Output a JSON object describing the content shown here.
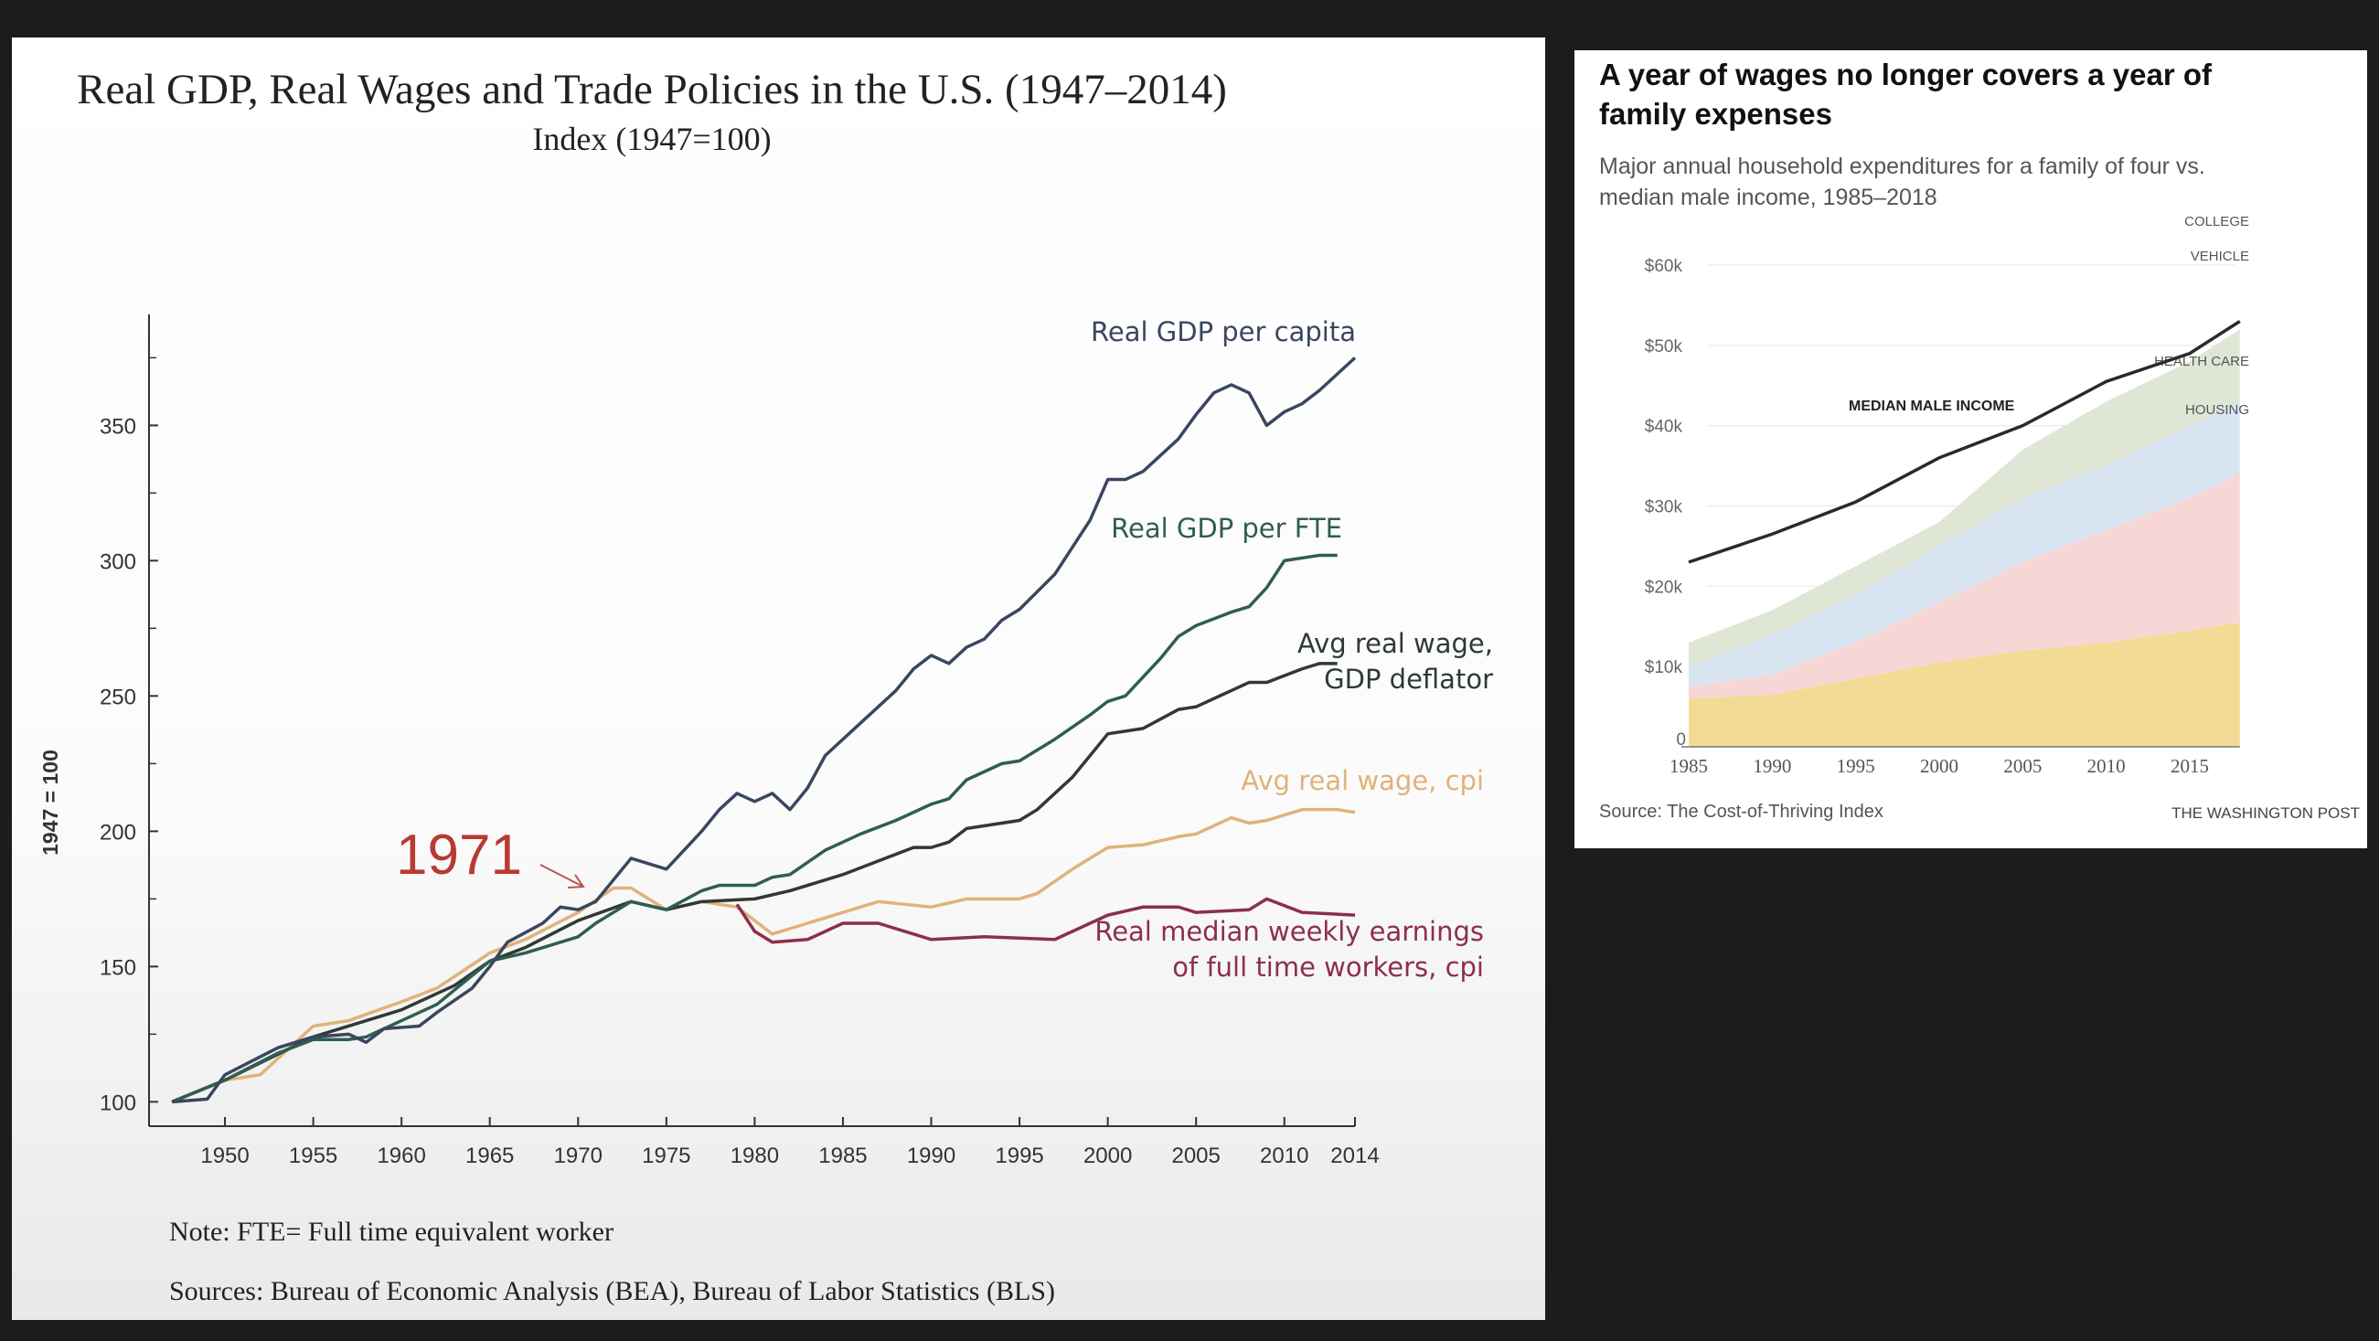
{
  "chart_data": [
    {
      "type": "line",
      "title": "Real GDP, Real Wages and Trade Policies in the U.S. (1947–2014)",
      "subtitle": "Index (1947=100)",
      "ylabel": "1947 = 100",
      "xlabel": "",
      "xlim": [
        1945.7,
        2014
      ],
      "ylim": [
        91,
        391
      ],
      "x_ticks": [
        "1950",
        "1955",
        "1960",
        "1965",
        "1970",
        "1975",
        "1980",
        "1985",
        "1990",
        "1995",
        "2000",
        "2005",
        "2010",
        "2014"
      ],
      "y_ticks": [
        "100",
        "150",
        "200",
        "250",
        "300",
        "350"
      ],
      "grid": false,
      "annotation": "1971",
      "series": [
        {
          "name": "Real GDP per capita",
          "color": "#3a4660",
          "points": [
            [
              1947,
              100
            ],
            [
              1949,
              101
            ],
            [
              1950,
              110
            ],
            [
              1953,
              120
            ],
            [
              1955,
              124
            ],
            [
              1957,
              125
            ],
            [
              1958,
              122
            ],
            [
              1959,
              127
            ],
            [
              1961,
              128
            ],
            [
              1962,
              133
            ],
            [
              1964,
              142
            ],
            [
              1965,
              150
            ],
            [
              1966,
              159
            ],
            [
              1968,
              166
            ],
            [
              1969,
              172
            ],
            [
              1970,
              171
            ],
            [
              1971,
              174
            ],
            [
              1973,
              190
            ],
            [
              1975,
              186
            ],
            [
              1977,
              200
            ],
            [
              1978,
              208
            ],
            [
              1979,
              214
            ],
            [
              1980,
              211
            ],
            [
              1981,
              214
            ],
            [
              1982,
              208
            ],
            [
              1983,
              216
            ],
            [
              1984,
              228
            ],
            [
              1986,
              240
            ],
            [
              1988,
              252
            ],
            [
              1989,
              260
            ],
            [
              1990,
              265
            ],
            [
              1991,
              262
            ],
            [
              1992,
              268
            ],
            [
              1993,
              271
            ],
            [
              1994,
              278
            ],
            [
              1995,
              282
            ],
            [
              1997,
              295
            ],
            [
              1999,
              315
            ],
            [
              2000,
              330
            ],
            [
              2001,
              330
            ],
            [
              2002,
              333
            ],
            [
              2004,
              345
            ],
            [
              2005,
              354
            ],
            [
              2006,
              362
            ],
            [
              2007,
              365
            ],
            [
              2008,
              362
            ],
            [
              2009,
              350
            ],
            [
              2010,
              355
            ],
            [
              2011,
              358
            ],
            [
              2012,
              363
            ],
            [
              2014,
              375
            ]
          ]
        },
        {
          "name": "Real GDP per FTE",
          "color": "#2f5e50",
          "points": [
            [
              1947,
              100
            ],
            [
              1950,
              108
            ],
            [
              1953,
              118
            ],
            [
              1955,
              123
            ],
            [
              1957,
              123
            ],
            [
              1958,
              124
            ],
            [
              1960,
              130
            ],
            [
              1962,
              136
            ],
            [
              1965,
              152
            ],
            [
              1967,
              155
            ],
            [
              1968,
              157
            ],
            [
              1970,
              161
            ],
            [
              1971,
              166
            ],
            [
              1973,
              174
            ],
            [
              1975,
              171
            ],
            [
              1977,
              178
            ],
            [
              1978,
              180
            ],
            [
              1980,
              180
            ],
            [
              1981,
              183
            ],
            [
              1982,
              184
            ],
            [
              1984,
              193
            ],
            [
              1986,
              199
            ],
            [
              1988,
              204
            ],
            [
              1990,
              210
            ],
            [
              1991,
              212
            ],
            [
              1992,
              219
            ],
            [
              1994,
              225
            ],
            [
              1995,
              226
            ],
            [
              1997,
              234
            ],
            [
              1999,
              243
            ],
            [
              2000,
              248
            ],
            [
              2001,
              250
            ],
            [
              2003,
              264
            ],
            [
              2004,
              272
            ],
            [
              2005,
              276
            ],
            [
              2007,
              281
            ],
            [
              2008,
              283
            ],
            [
              2009,
              290
            ],
            [
              2010,
              300
            ],
            [
              2012,
              302
            ],
            [
              2013,
              302
            ]
          ]
        },
        {
          "name": "Avg real wage, GDP deflator",
          "label_lines": [
            "Avg real wage,",
            "GDP deflator"
          ],
          "color": "#2e3a33",
          "points": [
            [
              1947,
              100
            ],
            [
              1950,
              108
            ],
            [
              1955,
              124
            ],
            [
              1958,
              130
            ],
            [
              1960,
              134
            ],
            [
              1963,
              143
            ],
            [
              1965,
              152
            ],
            [
              1967,
              157
            ],
            [
              1970,
              167
            ],
            [
              1973,
              174
            ],
            [
              1975,
              171
            ],
            [
              1977,
              174
            ],
            [
              1980,
              175
            ],
            [
              1982,
              178
            ],
            [
              1985,
              184
            ],
            [
              1987,
              189
            ],
            [
              1989,
              194
            ],
            [
              1990,
              194
            ],
            [
              1991,
              196
            ],
            [
              1992,
              201
            ],
            [
              1995,
              204
            ],
            [
              1996,
              208
            ],
            [
              1998,
              220
            ],
            [
              2000,
              236
            ],
            [
              2002,
              238
            ],
            [
              2004,
              245
            ],
            [
              2005,
              246
            ],
            [
              2007,
              252
            ],
            [
              2008,
              255
            ],
            [
              2009,
              255
            ],
            [
              2011,
              260
            ],
            [
              2012,
              262
            ],
            [
              2013,
              262
            ]
          ]
        },
        {
          "name": "Avg real wage, cpi",
          "color": "#e0b27a",
          "points": [
            [
              1947,
              100
            ],
            [
              1950,
              108
            ],
            [
              1952,
              110
            ],
            [
              1955,
              128
            ],
            [
              1957,
              130
            ],
            [
              1960,
              137
            ],
            [
              1962,
              142
            ],
            [
              1965,
              155
            ],
            [
              1967,
              160
            ],
            [
              1970,
              170
            ],
            [
              1972,
              179
            ],
            [
              1973,
              179
            ],
            [
              1975,
              171
            ],
            [
              1977,
              174
            ],
            [
              1979,
              172
            ],
            [
              1981,
              162
            ],
            [
              1983,
              166
            ],
            [
              1985,
              170
            ],
            [
              1987,
              174
            ],
            [
              1990,
              172
            ],
            [
              1992,
              175
            ],
            [
              1995,
              175
            ],
            [
              1996,
              177
            ],
            [
              1998,
              186
            ],
            [
              2000,
              194
            ],
            [
              2002,
              195
            ],
            [
              2004,
              198
            ],
            [
              2005,
              199
            ],
            [
              2007,
              205
            ],
            [
              2008,
              203
            ],
            [
              2009,
              204
            ],
            [
              2011,
              208
            ],
            [
              2013,
              208
            ],
            [
              2014,
              207
            ]
          ]
        },
        {
          "name": "Real median weekly earnings of full time workers, cpi",
          "label_lines": [
            "Real median weekly earnings",
            "of full time workers, cpi"
          ],
          "color": "#8c2f4a",
          "points": [
            [
              1979,
              173
            ],
            [
              1980,
              163
            ],
            [
              1981,
              159
            ],
            [
              1983,
              160
            ],
            [
              1985,
              166
            ],
            [
              1987,
              166
            ],
            [
              1989,
              162
            ],
            [
              1990,
              160
            ],
            [
              1993,
              161
            ],
            [
              1997,
              160
            ],
            [
              1999,
              166
            ],
            [
              2000,
              169
            ],
            [
              2002,
              172
            ],
            [
              2004,
              172
            ],
            [
              2005,
              170
            ],
            [
              2008,
              171
            ],
            [
              2009,
              175
            ],
            [
              2011,
              170
            ],
            [
              2014,
              169
            ]
          ]
        }
      ],
      "note": "Note: FTE= Full time equivalent worker",
      "sources": "Sources: Bureau of Economic Analysis (BEA), Bureau of Labor Statistics (BLS)"
    },
    {
      "type": "area",
      "title": "A year of wages no longer covers a year of family expenses",
      "title_lines": [
        "A year of wages no longer covers a year of",
        "family expenses"
      ],
      "subtitle_lines": [
        "Major annual household expenditures for a family of four vs.",
        "median male income, 1985–2018"
      ],
      "xlim": [
        1985,
        2018
      ],
      "ylim": [
        0,
        60000
      ],
      "x_ticks": [
        "1985",
        "1990",
        "1995",
        "2000",
        "2005",
        "2010",
        "2015"
      ],
      "y_ticks": [
        "0",
        "$10k",
        "$20k",
        "$30k",
        "$40k",
        "$50k",
        "$60k"
      ],
      "grid": true,
      "x": [
        1985,
        1990,
        1995,
        2000,
        2005,
        2010,
        2015,
        2018
      ],
      "stacked_series": [
        {
          "name": "HOUSING",
          "color": "#f4db95",
          "values": [
            6000,
            6500,
            8500,
            10500,
            12000,
            13000,
            14500,
            15500
          ]
        },
        {
          "name": "HEALTH CARE",
          "color": "#f7d6d6",
          "values": [
            1500,
            2500,
            4500,
            7500,
            11000,
            14000,
            16500,
            18500
          ]
        },
        {
          "name": "VEHICLE",
          "color": "#d9e4f1",
          "values": [
            2500,
            5000,
            6000,
            7000,
            8000,
            8000,
            9000,
            9000
          ]
        },
        {
          "name": "COLLEGE",
          "color": "#dfe6d5",
          "values": [
            3000,
            3000,
            3500,
            3000,
            6000,
            8000,
            8000,
            9000
          ]
        }
      ],
      "line_series": {
        "name": "MEDIAN MALE INCOME",
        "color": "#2a2a2a",
        "values": [
          23000,
          26500,
          30500,
          36000,
          40000,
          45500,
          49000,
          53000
        ]
      },
      "source": "Source: The Cost-of-Thriving Index",
      "credit": "THE WASHINGTON POST"
    }
  ]
}
